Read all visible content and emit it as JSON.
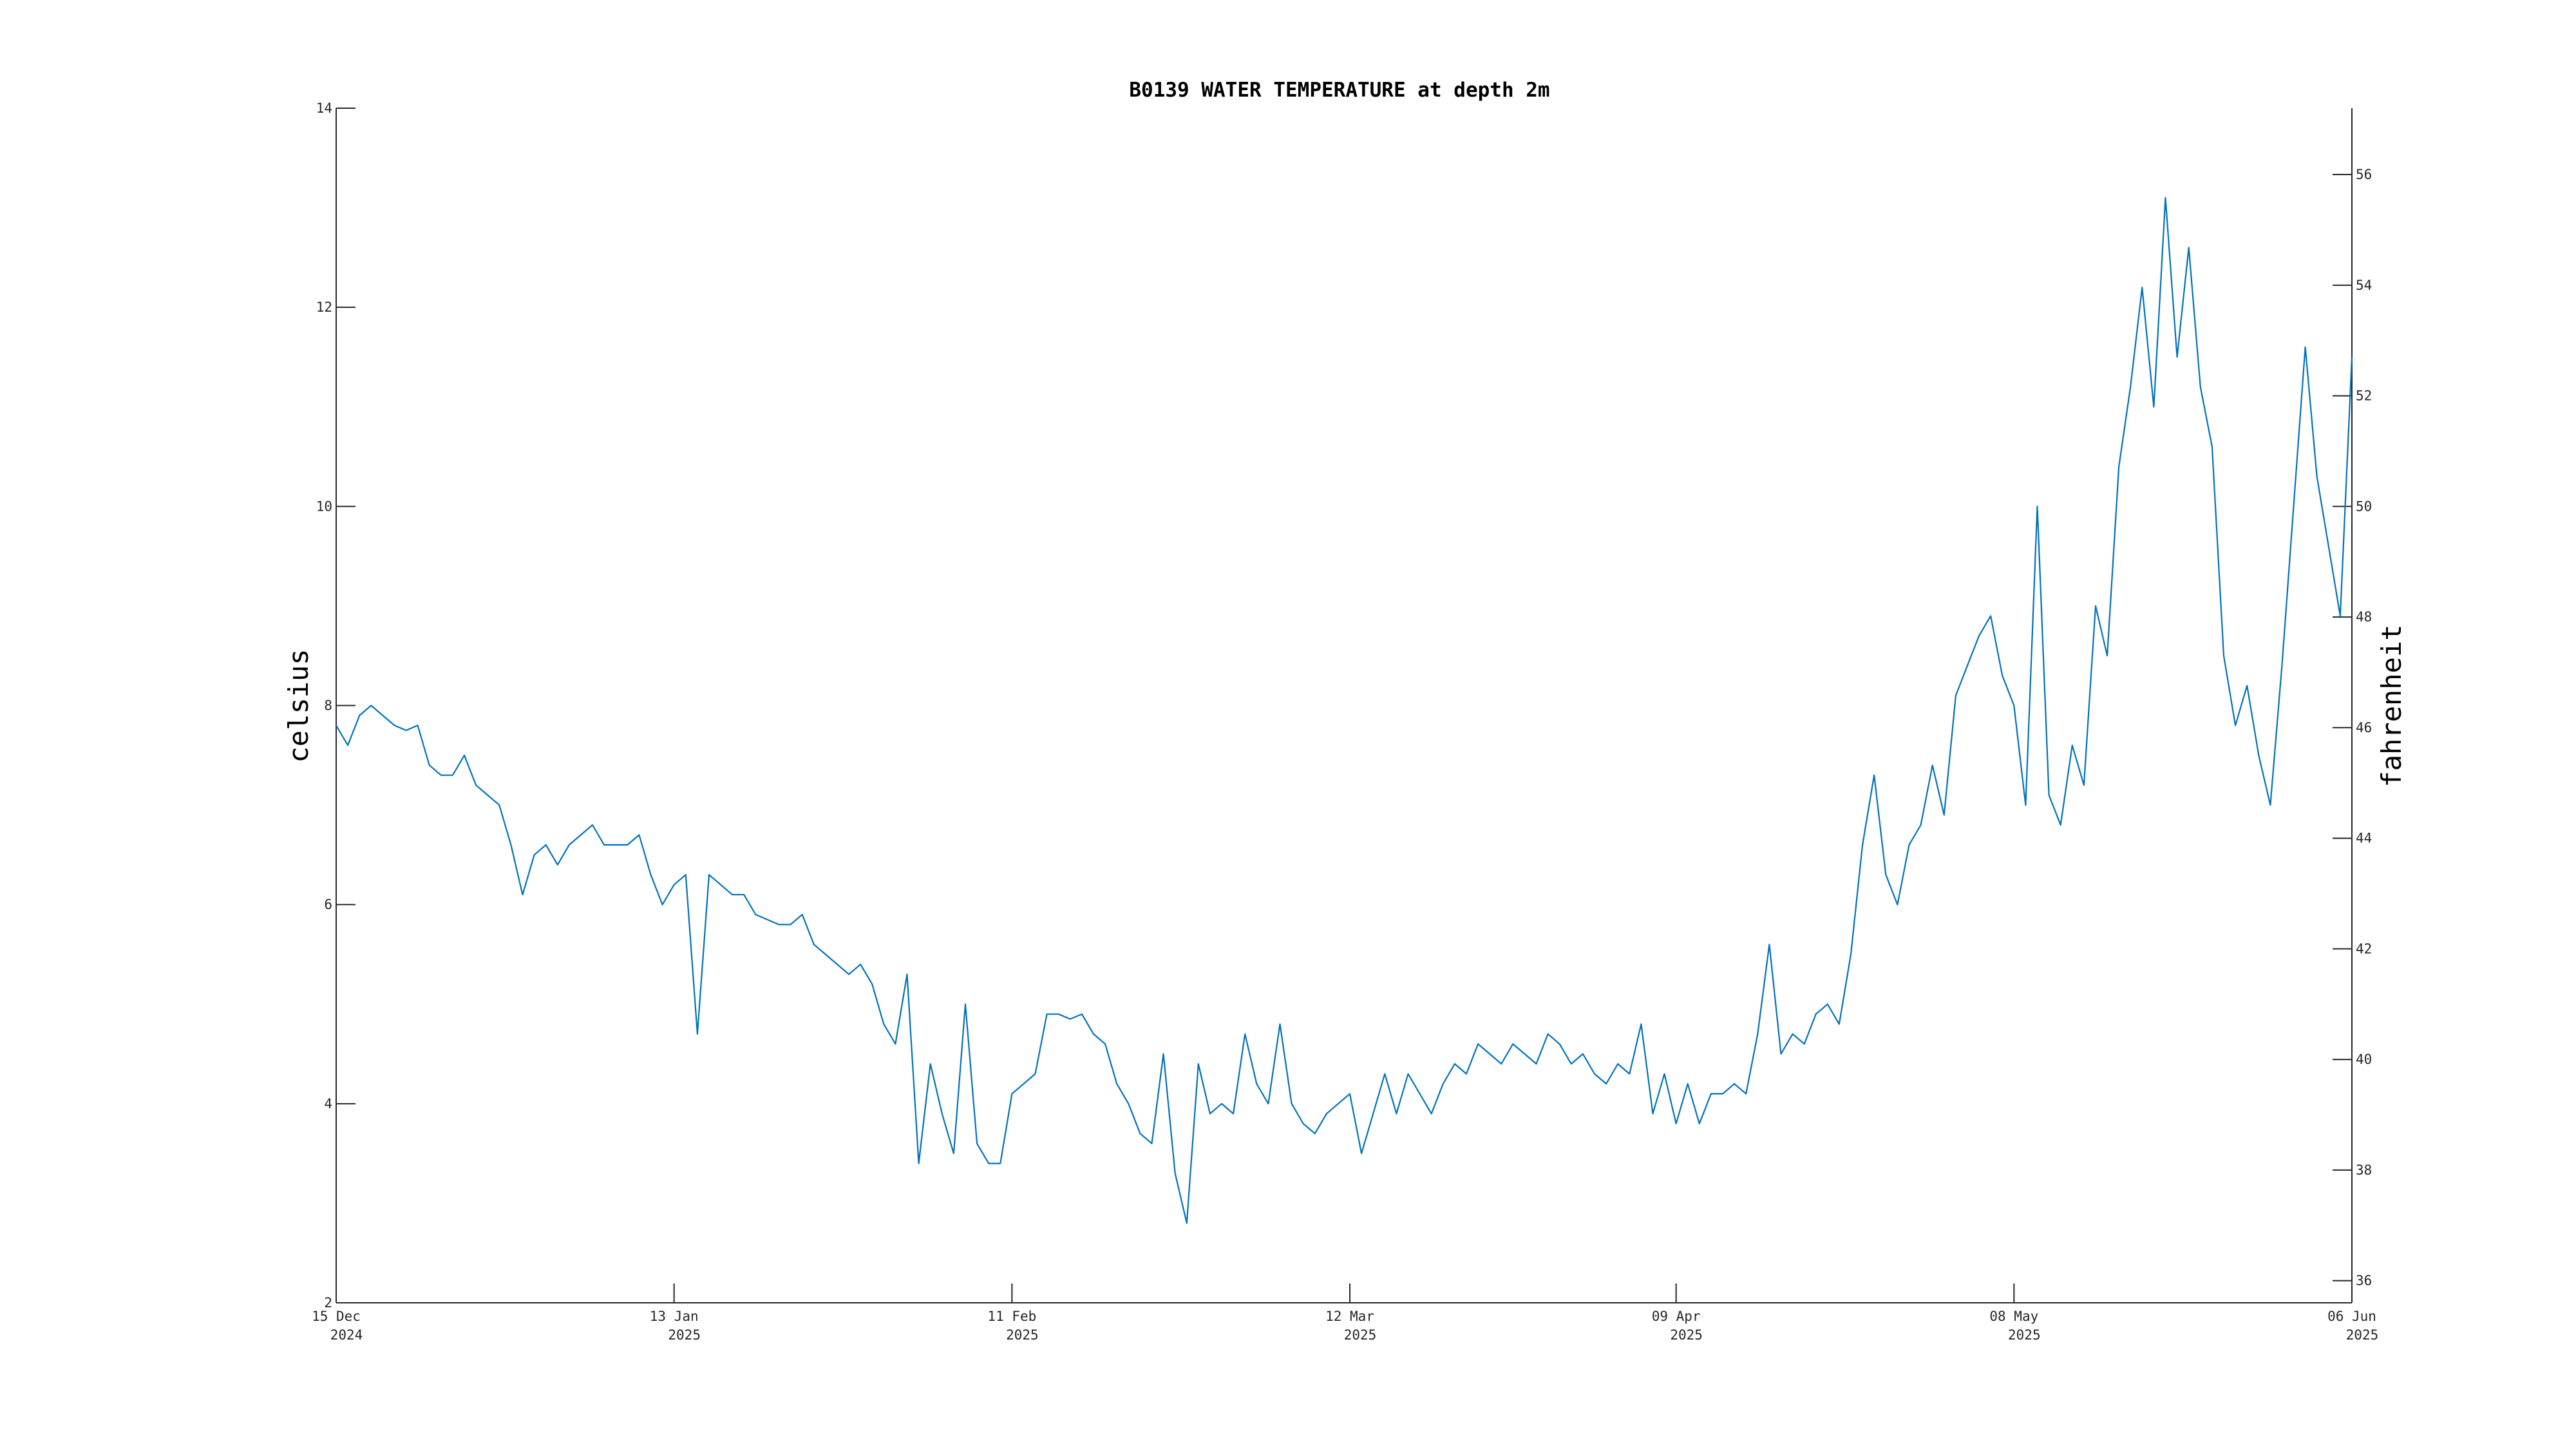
{
  "chart_data": {
    "type": "line",
    "title": "B0139 WATER TEMPERATURE at depth 2m",
    "ylabel_left": "celsius",
    "ylabel_right": "fahrenheit",
    "xlabel": "",
    "x_range": [
      "2024-12-15",
      "2025-06-06"
    ],
    "ylim_left": [
      2,
      14
    ],
    "ylim_right_in_fahrenheit": [
      35.6,
      57.2
    ],
    "y_ticks_left": [
      "2",
      "4",
      "6",
      "8",
      "10",
      "12",
      "14"
    ],
    "y_ticks_right": [
      "36",
      "38",
      "40",
      "42",
      "44",
      "46",
      "48",
      "50",
      "52",
      "54",
      "56"
    ],
    "x_ticks": [
      {
        "date": "2024-12-15",
        "line1": "15 Dec",
        "line2": "2024"
      },
      {
        "date": "2025-01-13",
        "line1": "13 Jan",
        "line2": "2025"
      },
      {
        "date": "2025-02-11",
        "line1": "11 Feb",
        "line2": "2025"
      },
      {
        "date": "2025-03-12",
        "line1": "12 Mar",
        "line2": "2025"
      },
      {
        "date": "2025-04-09",
        "line1": "09 Apr",
        "line2": "2025"
      },
      {
        "date": "2025-05-08",
        "line1": "08 May",
        "line2": "2025"
      },
      {
        "date": "2025-06-06",
        "line1": "06 Jun",
        "line2": "2025"
      }
    ],
    "grid": false,
    "series": [
      {
        "color": "#0072bd",
        "points": [
          [
            "2024-12-15",
            7.8
          ],
          [
            "2024-12-16",
            7.6
          ],
          [
            "2024-12-17",
            7.9
          ],
          [
            "2024-12-18",
            8.0
          ],
          [
            "2024-12-19",
            7.9
          ],
          [
            "2024-12-20",
            7.8
          ],
          [
            "2024-12-21",
            7.75
          ],
          [
            "2024-12-22",
            7.8
          ],
          [
            "2024-12-23",
            7.4
          ],
          [
            "2024-12-24",
            7.3
          ],
          [
            "2024-12-25",
            7.3
          ],
          [
            "2024-12-26",
            7.5
          ],
          [
            "2024-12-27",
            7.2
          ],
          [
            "2024-12-28",
            7.1
          ],
          [
            "2024-12-29",
            7.0
          ],
          [
            "2024-12-30",
            6.6
          ],
          [
            "2024-12-31",
            6.1
          ],
          [
            "2025-01-01",
            6.5
          ],
          [
            "2025-01-02",
            6.6
          ],
          [
            "2025-01-03",
            6.4
          ],
          [
            "2025-01-04",
            6.6
          ],
          [
            "2025-01-05",
            6.7
          ],
          [
            "2025-01-06",
            6.8
          ],
          [
            "2025-01-07",
            6.6
          ],
          [
            "2025-01-08",
            6.6
          ],
          [
            "2025-01-09",
            6.6
          ],
          [
            "2025-01-10",
            6.7
          ],
          [
            "2025-01-11",
            6.3
          ],
          [
            "2025-01-12",
            6.0
          ],
          [
            "2025-01-13",
            6.2
          ],
          [
            "2025-01-14",
            6.3
          ],
          [
            "2025-01-15",
            4.7
          ],
          [
            "2025-01-16",
            6.3
          ],
          [
            "2025-01-17",
            6.2
          ],
          [
            "2025-01-18",
            6.1
          ],
          [
            "2025-01-19",
            6.1
          ],
          [
            "2025-01-20",
            5.9
          ],
          [
            "2025-01-21",
            5.85
          ],
          [
            "2025-01-22",
            5.8
          ],
          [
            "2025-01-23",
            5.8
          ],
          [
            "2025-01-24",
            5.9
          ],
          [
            "2025-01-25",
            5.6
          ],
          [
            "2025-01-26",
            5.5
          ],
          [
            "2025-01-27",
            5.4
          ],
          [
            "2025-01-28",
            5.3
          ],
          [
            "2025-01-29",
            5.4
          ],
          [
            "2025-01-30",
            5.2
          ],
          [
            "2025-01-31",
            4.8
          ],
          [
            "2025-02-01",
            4.6
          ],
          [
            "2025-02-02",
            5.3
          ],
          [
            "2025-02-03",
            3.4
          ],
          [
            "2025-02-04",
            4.4
          ],
          [
            "2025-02-05",
            3.9
          ],
          [
            "2025-02-06",
            3.5
          ],
          [
            "2025-02-07",
            5.0
          ],
          [
            "2025-02-08",
            3.6
          ],
          [
            "2025-02-09",
            3.4
          ],
          [
            "2025-02-10",
            3.4
          ],
          [
            "2025-02-11",
            4.1
          ],
          [
            "2025-02-12",
            4.2
          ],
          [
            "2025-02-13",
            4.3
          ],
          [
            "2025-02-14",
            4.9
          ],
          [
            "2025-02-15",
            4.9
          ],
          [
            "2025-02-16",
            4.85
          ],
          [
            "2025-02-17",
            4.9
          ],
          [
            "2025-02-18",
            4.7
          ],
          [
            "2025-02-19",
            4.6
          ],
          [
            "2025-02-20",
            4.2
          ],
          [
            "2025-02-21",
            4.0
          ],
          [
            "2025-02-22",
            3.7
          ],
          [
            "2025-02-23",
            3.6
          ],
          [
            "2025-02-24",
            4.5
          ],
          [
            "2025-02-25",
            3.3
          ],
          [
            "2025-02-26",
            2.8
          ],
          [
            "2025-02-27",
            4.4
          ],
          [
            "2025-02-28",
            3.9
          ],
          [
            "2025-03-01",
            4.0
          ],
          [
            "2025-03-02",
            3.9
          ],
          [
            "2025-03-03",
            4.7
          ],
          [
            "2025-03-04",
            4.2
          ],
          [
            "2025-03-05",
            4.0
          ],
          [
            "2025-03-06",
            4.8
          ],
          [
            "2025-03-07",
            4.0
          ],
          [
            "2025-03-08",
            3.8
          ],
          [
            "2025-03-09",
            3.7
          ],
          [
            "2025-03-10",
            3.9
          ],
          [
            "2025-03-11",
            4.0
          ],
          [
            "2025-03-12",
            4.1
          ],
          [
            "2025-03-13",
            3.5
          ],
          [
            "2025-03-14",
            3.9
          ],
          [
            "2025-03-15",
            4.3
          ],
          [
            "2025-03-16",
            3.9
          ],
          [
            "2025-03-17",
            4.3
          ],
          [
            "2025-03-18",
            4.1
          ],
          [
            "2025-03-19",
            3.9
          ],
          [
            "2025-03-20",
            4.2
          ],
          [
            "2025-03-21",
            4.4
          ],
          [
            "2025-03-22",
            4.3
          ],
          [
            "2025-03-23",
            4.6
          ],
          [
            "2025-03-24",
            4.5
          ],
          [
            "2025-03-25",
            4.4
          ],
          [
            "2025-03-26",
            4.6
          ],
          [
            "2025-03-27",
            4.5
          ],
          [
            "2025-03-28",
            4.4
          ],
          [
            "2025-03-29",
            4.7
          ],
          [
            "2025-03-30",
            4.6
          ],
          [
            "2025-03-31",
            4.4
          ],
          [
            "2025-04-01",
            4.5
          ],
          [
            "2025-04-02",
            4.3
          ],
          [
            "2025-04-03",
            4.2
          ],
          [
            "2025-04-04",
            4.4
          ],
          [
            "2025-04-05",
            4.3
          ],
          [
            "2025-04-06",
            4.8
          ],
          [
            "2025-04-07",
            3.9
          ],
          [
            "2025-04-08",
            4.3
          ],
          [
            "2025-04-09",
            3.8
          ],
          [
            "2025-04-10",
            4.2
          ],
          [
            "2025-04-11",
            3.8
          ],
          [
            "2025-04-12",
            4.1
          ],
          [
            "2025-04-13",
            4.1
          ],
          [
            "2025-04-14",
            4.2
          ],
          [
            "2025-04-15",
            4.1
          ],
          [
            "2025-04-16",
            4.7
          ],
          [
            "2025-04-17",
            5.6
          ],
          [
            "2025-04-18",
            4.5
          ],
          [
            "2025-04-19",
            4.7
          ],
          [
            "2025-04-20",
            4.6
          ],
          [
            "2025-04-21",
            4.9
          ],
          [
            "2025-04-22",
            5.0
          ],
          [
            "2025-04-23",
            4.8
          ],
          [
            "2025-04-24",
            5.5
          ],
          [
            "2025-04-25",
            6.6
          ],
          [
            "2025-04-26",
            7.3
          ],
          [
            "2025-04-27",
            6.3
          ],
          [
            "2025-04-28",
            6.0
          ],
          [
            "2025-04-29",
            6.6
          ],
          [
            "2025-04-30",
            6.8
          ],
          [
            "2025-05-01",
            7.4
          ],
          [
            "2025-05-02",
            6.9
          ],
          [
            "2025-05-03",
            8.1
          ],
          [
            "2025-05-04",
            8.4
          ],
          [
            "2025-05-05",
            8.7
          ],
          [
            "2025-05-06",
            8.9
          ],
          [
            "2025-05-07",
            8.3
          ],
          [
            "2025-05-08",
            8.0
          ],
          [
            "2025-05-09",
            7.0
          ],
          [
            "2025-05-10",
            10.0
          ],
          [
            "2025-05-11",
            7.1
          ],
          [
            "2025-05-12",
            6.8
          ],
          [
            "2025-05-13",
            7.6
          ],
          [
            "2025-05-14",
            7.2
          ],
          [
            "2025-05-15",
            9.0
          ],
          [
            "2025-05-16",
            8.5
          ],
          [
            "2025-05-17",
            10.4
          ],
          [
            "2025-05-18",
            11.2
          ],
          [
            "2025-05-19",
            12.2
          ],
          [
            "2025-05-20",
            11.0
          ],
          [
            "2025-05-21",
            13.1
          ],
          [
            "2025-05-22",
            11.5
          ],
          [
            "2025-05-23",
            12.6
          ],
          [
            "2025-05-24",
            11.2
          ],
          [
            "2025-05-25",
            10.6
          ],
          [
            "2025-05-26",
            8.5
          ],
          [
            "2025-05-27",
            7.8
          ],
          [
            "2025-05-28",
            8.2
          ],
          [
            "2025-05-29",
            7.5
          ],
          [
            "2025-05-30",
            7.0
          ],
          [
            "2025-05-31",
            8.4
          ],
          [
            "2025-06-01",
            10.0
          ],
          [
            "2025-06-02",
            11.6
          ],
          [
            "2025-06-03",
            10.3
          ],
          [
            "2025-06-04",
            9.6
          ],
          [
            "2025-06-05",
            8.9
          ],
          [
            "2025-06-06",
            11.5
          ]
        ]
      }
    ]
  }
}
